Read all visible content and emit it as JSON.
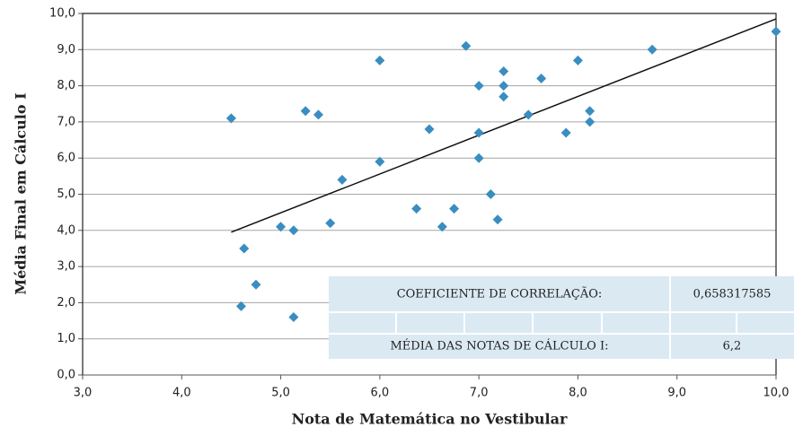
{
  "chart_data": {
    "type": "scatter",
    "x_label": "Nota de Matemática no Vestibular",
    "y_label": "Média Final em Cálculo I",
    "color": "#3a8dc0",
    "series": [
      {
        "x": [
          4.5,
          4.63,
          4.75,
          4.6,
          5.0,
          5.13,
          5.13,
          5.25,
          5.38,
          5.5,
          5.62,
          6.0,
          6.0,
          6.37,
          6.5,
          6.63,
          6.75,
          6.87,
          7.0,
          7.0,
          7.0,
          7.12,
          7.19,
          7.25,
          7.25,
          7.25,
          7.5,
          7.63,
          7.88,
          8.0,
          8.12,
          8.12,
          8.75,
          10.0
        ],
        "values": [
          7.1,
          3.5,
          2.5,
          1.9,
          4.1,
          4.0,
          1.6,
          7.3,
          7.2,
          4.2,
          5.4,
          8.7,
          5.9,
          4.6,
          6.8,
          4.1,
          4.6,
          9.1,
          8.0,
          6.7,
          6.0,
          5.0,
          4.3,
          8.4,
          8.0,
          7.7,
          7.2,
          8.2,
          6.7,
          8.7,
          7.3,
          7.0,
          9.0,
          9.5
        ]
      }
    ],
    "trendline": {
      "x": [
        4.5,
        10.0
      ],
      "values": [
        3.95,
        9.85
      ],
      "color": "#111111"
    },
    "xlim": [
      3.0,
      10.0
    ],
    "xticks": [
      {
        "value": 3,
        "label": "3,0"
      },
      {
        "value": 4,
        "label": "4,0"
      },
      {
        "value": 5,
        "label": "5,0"
      },
      {
        "value": 6,
        "label": "6,0"
      },
      {
        "value": 7,
        "label": "7,0"
      },
      {
        "value": 8,
        "label": "8,0"
      },
      {
        "value": 9,
        "label": "9,0"
      },
      {
        "value": 10,
        "label": "10,0"
      }
    ],
    "ylim": [
      0.0,
      10.0
    ],
    "yticks": [
      {
        "value": 0,
        "label": "0,0"
      },
      {
        "value": 1,
        "label": "1,0"
      },
      {
        "value": 2,
        "label": "2,0"
      },
      {
        "value": 3,
        "label": "3,0"
      },
      {
        "value": 4,
        "label": "4,0"
      },
      {
        "value": 5,
        "label": "5,0"
      },
      {
        "value": 6,
        "label": "6,0"
      },
      {
        "value": 7,
        "label": "7,0"
      },
      {
        "value": 8,
        "label": "8,0"
      },
      {
        "value": 9,
        "label": "9,0"
      },
      {
        "value": 10,
        "label": "10,0"
      }
    ],
    "grid": true
  },
  "table": {
    "rows": [
      [
        "COEFICIENTE DE CORRELAÇÃO:",
        "0,658317585"
      ],
      [
        "MÉDIA DAS NOTAS DE CÁLCULO I:",
        "6,2"
      ]
    ]
  }
}
